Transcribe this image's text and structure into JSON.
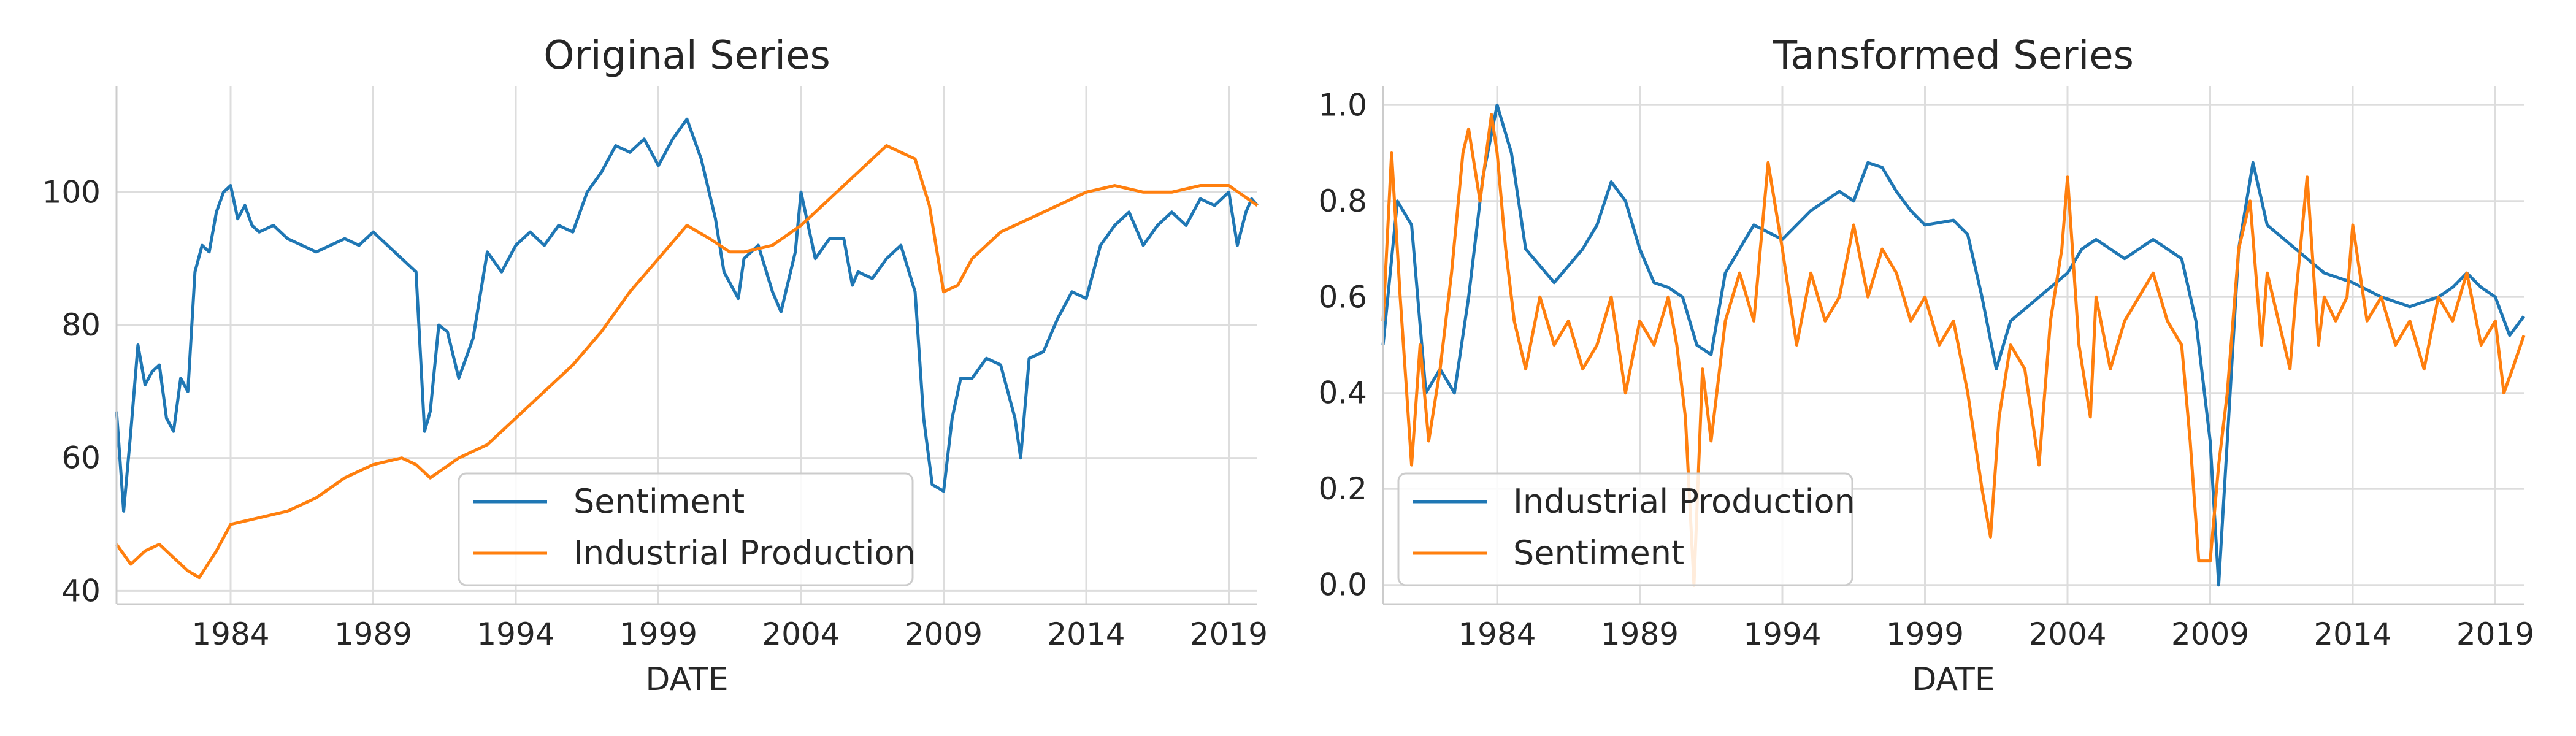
{
  "chart_data": [
    {
      "type": "line",
      "title": "Original Series",
      "xlabel": "DATE",
      "ylabel": "",
      "xlim": [
        1980.0,
        2020.0
      ],
      "ylim": [
        38,
        116
      ],
      "xticks": [
        "1984",
        "1989",
        "1994",
        "1999",
        "2004",
        "2009",
        "2014",
        "2019"
      ],
      "yticks": [
        "40",
        "60",
        "80",
        "100"
      ],
      "grid": true,
      "legend_position": "bottom-center",
      "series": [
        {
          "name": "Sentiment",
          "color": "#1f77b4",
          "x": [
            1980.0,
            1980.25,
            1980.5,
            1980.75,
            1981.0,
            1981.25,
            1981.5,
            1981.75,
            1982.0,
            1982.25,
            1982.5,
            1982.75,
            1983.0,
            1983.25,
            1983.5,
            1983.75,
            1984.0,
            1984.25,
            1984.5,
            1984.75,
            1985.0,
            1985.5,
            1986.0,
            1986.5,
            1987.0,
            1987.5,
            1988.0,
            1988.5,
            1989.0,
            1989.5,
            1990.0,
            1990.5,
            1990.8,
            1991.0,
            1991.3,
            1991.6,
            1992.0,
            1992.5,
            1993.0,
            1993.5,
            1994.0,
            1994.5,
            1995.0,
            1995.5,
            1996.0,
            1996.5,
            1997.0,
            1997.5,
            1998.0,
            1998.5,
            1999.0,
            1999.5,
            2000.0,
            2000.5,
            2001.0,
            2001.3,
            2001.8,
            2002.0,
            2002.5,
            2003.0,
            2003.3,
            2003.8,
            2004.0,
            2004.5,
            2005.0,
            2005.5,
            2005.8,
            2006.0,
            2006.5,
            2007.0,
            2007.5,
            2008.0,
            2008.3,
            2008.6,
            2009.0,
            2009.3,
            2009.6,
            2010.0,
            2010.5,
            2011.0,
            2011.5,
            2011.7,
            2012.0,
            2012.5,
            2013.0,
            2013.5,
            2014.0,
            2014.5,
            2015.0,
            2015.5,
            2016.0,
            2016.5,
            2017.0,
            2017.5,
            2018.0,
            2018.5,
            2019.0,
            2019.3,
            2019.6,
            2019.8,
            2020.0
          ],
          "values": [
            67,
            52,
            64,
            77,
            71,
            73,
            74,
            66,
            64,
            72,
            70,
            88,
            92,
            91,
            97,
            100,
            101,
            96,
            98,
            95,
            94,
            95,
            93,
            92,
            91,
            92,
            93,
            92,
            94,
            92,
            90,
            88,
            64,
            67,
            80,
            79,
            72,
            78,
            91,
            88,
            92,
            94,
            92,
            95,
            94,
            100,
            103,
            107,
            106,
            108,
            104,
            108,
            111,
            105,
            96,
            88,
            84,
            90,
            92,
            85,
            82,
            91,
            100,
            90,
            93,
            93,
            86,
            88,
            87,
            90,
            92,
            85,
            66,
            56,
            55,
            66,
            72,
            72,
            75,
            74,
            66,
            60,
            75,
            76,
            81,
            85,
            84,
            92,
            95,
            97,
            92,
            95,
            97,
            95,
            99,
            98,
            100,
            92,
            97,
            99,
            98
          ]
        },
        {
          "name": "Industrial Production",
          "color": "#ff7f0e",
          "x": [
            1980.0,
            1980.5,
            1981.0,
            1981.5,
            1982.0,
            1982.5,
            1982.9,
            1983.5,
            1984.0,
            1985.0,
            1986.0,
            1987.0,
            1988.0,
            1989.0,
            1990.0,
            1990.5,
            1991.0,
            1992.0,
            1993.0,
            1994.0,
            1995.0,
            1996.0,
            1997.0,
            1998.0,
            1999.0,
            2000.0,
            2000.8,
            2001.5,
            2002.0,
            2003.0,
            2004.0,
            2005.0,
            2006.0,
            2007.0,
            2008.0,
            2008.5,
            2009.0,
            2009.5,
            2010.0,
            2010.5,
            2011.0,
            2012.0,
            2013.0,
            2014.0,
            2015.0,
            2016.0,
            2017.0,
            2018.0,
            2019.0,
            2020.0
          ],
          "values": [
            47,
            44,
            46,
            47,
            45,
            43,
            42,
            46,
            50,
            51,
            52,
            54,
            57,
            59,
            60,
            59,
            57,
            60,
            62,
            66,
            70,
            74,
            79,
            85,
            90,
            95,
            93,
            91,
            91,
            92,
            95,
            99,
            103,
            107,
            105,
            98,
            85,
            86,
            90,
            92,
            94,
            96,
            98,
            100,
            101,
            100,
            100,
            101,
            101,
            98
          ]
        }
      ]
    },
    {
      "type": "line",
      "title": "Tansformed Series",
      "xlabel": "DATE",
      "ylabel": "",
      "xlim": [
        1980.0,
        2020.0
      ],
      "ylim": [
        -0.04,
        1.04
      ],
      "xticks": [
        "1984",
        "1989",
        "1994",
        "1999",
        "2004",
        "2009",
        "2014",
        "2019"
      ],
      "yticks": [
        "0.0",
        "0.2",
        "0.4",
        "0.6",
        "0.8",
        "1.0"
      ],
      "grid": true,
      "legend_position": "bottom-left",
      "series": [
        {
          "name": "Industrial Production",
          "color": "#1f77b4",
          "x": [
            1980.0,
            1980.5,
            1981.0,
            1981.5,
            1982.0,
            1982.5,
            1983.0,
            1983.5,
            1984.0,
            1984.5,
            1985.0,
            1986.0,
            1987.0,
            1987.5,
            1988.0,
            1988.5,
            1989.0,
            1989.5,
            1990.0,
            1990.5,
            1991.0,
            1991.5,
            1992.0,
            1993.0,
            1994.0,
            1995.0,
            1996.0,
            1996.5,
            1997.0,
            1997.5,
            1998.0,
            1998.5,
            1999.0,
            2000.0,
            2000.5,
            2001.0,
            2001.5,
            2002.0,
            2003.0,
            2004.0,
            2004.5,
            2005.0,
            2006.0,
            2007.0,
            2008.0,
            2008.5,
            2009.0,
            2009.3,
            2009.6,
            2010.0,
            2010.5,
            2011.0,
            2012.0,
            2013.0,
            2014.0,
            2015.0,
            2016.0,
            2017.0,
            2017.5,
            2018.0,
            2018.5,
            2019.0,
            2019.5,
            2020.0
          ],
          "values": [
            0.5,
            0.8,
            0.75,
            0.4,
            0.45,
            0.4,
            0.6,
            0.85,
            1.0,
            0.9,
            0.7,
            0.63,
            0.7,
            0.75,
            0.84,
            0.8,
            0.7,
            0.63,
            0.62,
            0.6,
            0.5,
            0.48,
            0.65,
            0.75,
            0.72,
            0.78,
            0.82,
            0.8,
            0.88,
            0.87,
            0.82,
            0.78,
            0.75,
            0.76,
            0.73,
            0.6,
            0.45,
            0.55,
            0.6,
            0.65,
            0.7,
            0.72,
            0.68,
            0.72,
            0.68,
            0.55,
            0.3,
            0.0,
            0.3,
            0.7,
            0.88,
            0.75,
            0.7,
            0.65,
            0.63,
            0.6,
            0.58,
            0.6,
            0.62,
            0.65,
            0.62,
            0.6,
            0.52,
            0.56
          ]
        },
        {
          "name": "Sentiment",
          "color": "#ff7f0e",
          "x": [
            1980.0,
            1980.3,
            1980.6,
            1981.0,
            1981.3,
            1981.6,
            1982.0,
            1982.4,
            1982.8,
            1983.0,
            1983.4,
            1983.8,
            1984.0,
            1984.3,
            1984.6,
            1985.0,
            1985.5,
            1986.0,
            1986.5,
            1987.0,
            1987.5,
            1988.0,
            1988.5,
            1989.0,
            1989.5,
            1990.0,
            1990.3,
            1990.6,
            1990.9,
            1991.2,
            1991.5,
            1992.0,
            1992.5,
            1993.0,
            1993.5,
            1994.0,
            1994.5,
            1995.0,
            1995.5,
            1996.0,
            1996.5,
            1997.0,
            1997.5,
            1998.0,
            1998.5,
            1999.0,
            1999.5,
            2000.0,
            2000.5,
            2001.0,
            2001.3,
            2001.6,
            2002.0,
            2002.5,
            2003.0,
            2003.4,
            2003.8,
            2004.0,
            2004.4,
            2004.8,
            2005.0,
            2005.5,
            2006.0,
            2006.5,
            2007.0,
            2007.5,
            2008.0,
            2008.3,
            2008.6,
            2009.0,
            2009.3,
            2009.6,
            2010.0,
            2010.4,
            2010.8,
            2011.0,
            2011.4,
            2011.8,
            2012.0,
            2012.4,
            2012.8,
            2013.0,
            2013.4,
            2013.8,
            2014.0,
            2014.5,
            2015.0,
            2015.5,
            2016.0,
            2016.5,
            2017.0,
            2017.5,
            2018.0,
            2018.5,
            2019.0,
            2019.3,
            2019.6,
            2020.0
          ],
          "values": [
            0.55,
            0.9,
            0.6,
            0.25,
            0.5,
            0.3,
            0.45,
            0.65,
            0.9,
            0.95,
            0.8,
            0.98,
            0.9,
            0.7,
            0.55,
            0.45,
            0.6,
            0.5,
            0.55,
            0.45,
            0.5,
            0.6,
            0.4,
            0.55,
            0.5,
            0.6,
            0.5,
            0.35,
            0.0,
            0.45,
            0.3,
            0.55,
            0.65,
            0.55,
            0.88,
            0.7,
            0.5,
            0.65,
            0.55,
            0.6,
            0.75,
            0.6,
            0.7,
            0.65,
            0.55,
            0.6,
            0.5,
            0.55,
            0.4,
            0.2,
            0.1,
            0.35,
            0.5,
            0.45,
            0.25,
            0.55,
            0.7,
            0.85,
            0.5,
            0.35,
            0.6,
            0.45,
            0.55,
            0.6,
            0.65,
            0.55,
            0.5,
            0.3,
            0.05,
            0.05,
            0.25,
            0.4,
            0.7,
            0.8,
            0.5,
            0.65,
            0.55,
            0.45,
            0.6,
            0.85,
            0.5,
            0.6,
            0.55,
            0.6,
            0.75,
            0.55,
            0.6,
            0.5,
            0.55,
            0.45,
            0.6,
            0.55,
            0.65,
            0.5,
            0.55,
            0.4,
            0.45,
            0.52
          ]
        }
      ]
    }
  ]
}
